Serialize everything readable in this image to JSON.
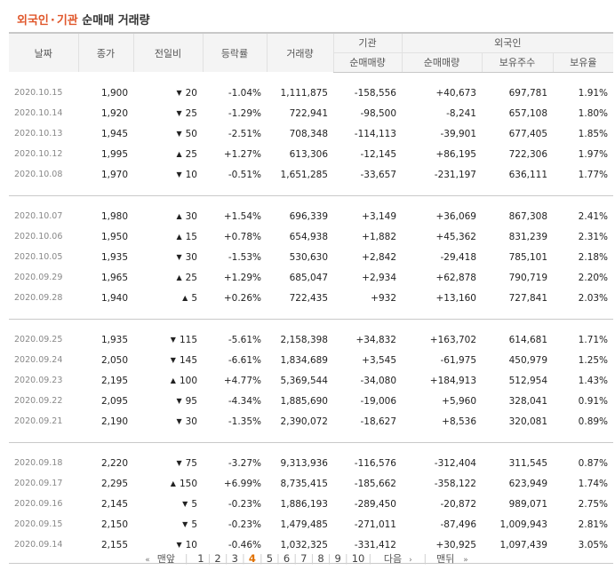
{
  "title": {
    "org": "외국인",
    "dot": "·",
    "inst": "기관",
    "rest": "순매매 거래량"
  },
  "headers": {
    "date": "날짜",
    "close": "종가",
    "change": "전일비",
    "rate": "등락률",
    "volume": "거래량",
    "institution": "기관",
    "foreign": "외국인",
    "inst_net": "순매매량",
    "foreign_net": "순매매량",
    "holdings": "보유주수",
    "holding_rate": "보유율"
  },
  "groups": [
    [
      {
        "date": "2020.10.15",
        "close": "1,900",
        "dir": "down",
        "change": "20",
        "rate": "-1.04%",
        "volume": "1,111,875",
        "inst": "-158,556",
        "foreign": "+40,673",
        "holdings": "697,781",
        "hold_rate": "1.91%"
      },
      {
        "date": "2020.10.14",
        "close": "1,920",
        "dir": "down",
        "change": "25",
        "rate": "-1.29%",
        "volume": "722,941",
        "inst": "-98,500",
        "foreign": "-8,241",
        "holdings": "657,108",
        "hold_rate": "1.80%"
      },
      {
        "date": "2020.10.13",
        "close": "1,945",
        "dir": "down",
        "change": "50",
        "rate": "-2.51%",
        "volume": "708,348",
        "inst": "-114,113",
        "foreign": "-39,901",
        "holdings": "677,405",
        "hold_rate": "1.85%"
      },
      {
        "date": "2020.10.12",
        "close": "1,995",
        "dir": "up",
        "change": "25",
        "rate": "+1.27%",
        "volume": "613,306",
        "inst": "-12,145",
        "foreign": "+86,195",
        "holdings": "722,306",
        "hold_rate": "1.97%"
      },
      {
        "date": "2020.10.08",
        "close": "1,970",
        "dir": "down",
        "change": "10",
        "rate": "-0.51%",
        "volume": "1,651,285",
        "inst": "-33,657",
        "foreign": "-231,197",
        "holdings": "636,111",
        "hold_rate": "1.77%"
      }
    ],
    [
      {
        "date": "2020.10.07",
        "close": "1,980",
        "dir": "up",
        "change": "30",
        "rate": "+1.54%",
        "volume": "696,339",
        "inst": "+3,149",
        "foreign": "+36,069",
        "holdings": "867,308",
        "hold_rate": "2.41%"
      },
      {
        "date": "2020.10.06",
        "close": "1,950",
        "dir": "up",
        "change": "15",
        "rate": "+0.78%",
        "volume": "654,938",
        "inst": "+1,882",
        "foreign": "+45,362",
        "holdings": "831,239",
        "hold_rate": "2.31%"
      },
      {
        "date": "2020.10.05",
        "close": "1,935",
        "dir": "down",
        "change": "30",
        "rate": "-1.53%",
        "volume": "530,630",
        "inst": "+2,842",
        "foreign": "-29,418",
        "holdings": "785,101",
        "hold_rate": "2.18%"
      },
      {
        "date": "2020.09.29",
        "close": "1,965",
        "dir": "up",
        "change": "25",
        "rate": "+1.29%",
        "volume": "685,047",
        "inst": "+2,934",
        "foreign": "+62,878",
        "holdings": "790,719",
        "hold_rate": "2.20%"
      },
      {
        "date": "2020.09.28",
        "close": "1,940",
        "dir": "up",
        "change": "5",
        "rate": "+0.26%",
        "volume": "722,435",
        "inst": "+932",
        "foreign": "+13,160",
        "holdings": "727,841",
        "hold_rate": "2.03%"
      }
    ],
    [
      {
        "date": "2020.09.25",
        "close": "1,935",
        "dir": "down",
        "change": "115",
        "rate": "-5.61%",
        "volume": "2,158,398",
        "inst": "+34,832",
        "foreign": "+163,702",
        "holdings": "614,681",
        "hold_rate": "1.71%"
      },
      {
        "date": "2020.09.24",
        "close": "2,050",
        "dir": "down",
        "change": "145",
        "rate": "-6.61%",
        "volume": "1,834,689",
        "inst": "+3,545",
        "foreign": "-61,975",
        "holdings": "450,979",
        "hold_rate": "1.25%"
      },
      {
        "date": "2020.09.23",
        "close": "2,195",
        "dir": "up",
        "change": "100",
        "rate": "+4.77%",
        "volume": "5,369,544",
        "inst": "-34,080",
        "foreign": "+184,913",
        "holdings": "512,954",
        "hold_rate": "1.43%"
      },
      {
        "date": "2020.09.22",
        "close": "2,095",
        "dir": "down",
        "change": "95",
        "rate": "-4.34%",
        "volume": "1,885,690",
        "inst": "-19,006",
        "foreign": "+5,960",
        "holdings": "328,041",
        "hold_rate": "0.91%"
      },
      {
        "date": "2020.09.21",
        "close": "2,190",
        "dir": "down",
        "change": "30",
        "rate": "-1.35%",
        "volume": "2,390,072",
        "inst": "-18,627",
        "foreign": "+8,536",
        "holdings": "320,081",
        "hold_rate": "0.89%"
      }
    ],
    [
      {
        "date": "2020.09.18",
        "close": "2,220",
        "dir": "down",
        "change": "75",
        "rate": "-3.27%",
        "volume": "9,313,936",
        "inst": "-116,576",
        "foreign": "-312,404",
        "holdings": "311,545",
        "hold_rate": "0.87%"
      },
      {
        "date": "2020.09.17",
        "close": "2,295",
        "dir": "up",
        "change": "150",
        "rate": "+6.99%",
        "volume": "8,735,415",
        "inst": "-185,662",
        "foreign": "-358,122",
        "holdings": "623,949",
        "hold_rate": "1.74%"
      },
      {
        "date": "2020.09.16",
        "close": "2,145",
        "dir": "down",
        "change": "5",
        "rate": "-0.23%",
        "volume": "1,886,193",
        "inst": "-289,450",
        "foreign": "-20,872",
        "holdings": "989,071",
        "hold_rate": "2.75%"
      },
      {
        "date": "2020.09.15",
        "close": "2,150",
        "dir": "down",
        "change": "5",
        "rate": "-0.23%",
        "volume": "1,479,485",
        "inst": "-271,011",
        "foreign": "-87,496",
        "holdings": "1,009,943",
        "hold_rate": "2.81%"
      },
      {
        "date": "2020.09.14",
        "close": "2,155",
        "dir": "down",
        "change": "10",
        "rate": "-0.46%",
        "volume": "1,032,325",
        "inst": "-331,412",
        "foreign": "+30,925",
        "holdings": "1,097,439",
        "hold_rate": "3.05%"
      }
    ]
  ],
  "pager": {
    "first_label": "맨앞",
    "pages": [
      "1",
      "2",
      "3",
      "4",
      "5",
      "6",
      "7",
      "8",
      "9",
      "10"
    ],
    "current": "4",
    "next_label": "다음",
    "last_label": "맨뒤"
  },
  "colors": {
    "up": "#d60000",
    "down": "#1563c4",
    "title_accent": "#e0572b",
    "current_page": "#e07000"
  },
  "icons": {
    "up": "triangle-up-icon",
    "down": "triangle-down-icon",
    "first": "double-chevron-left-icon",
    "next": "chevron-right-icon",
    "last": "double-chevron-right-icon"
  }
}
